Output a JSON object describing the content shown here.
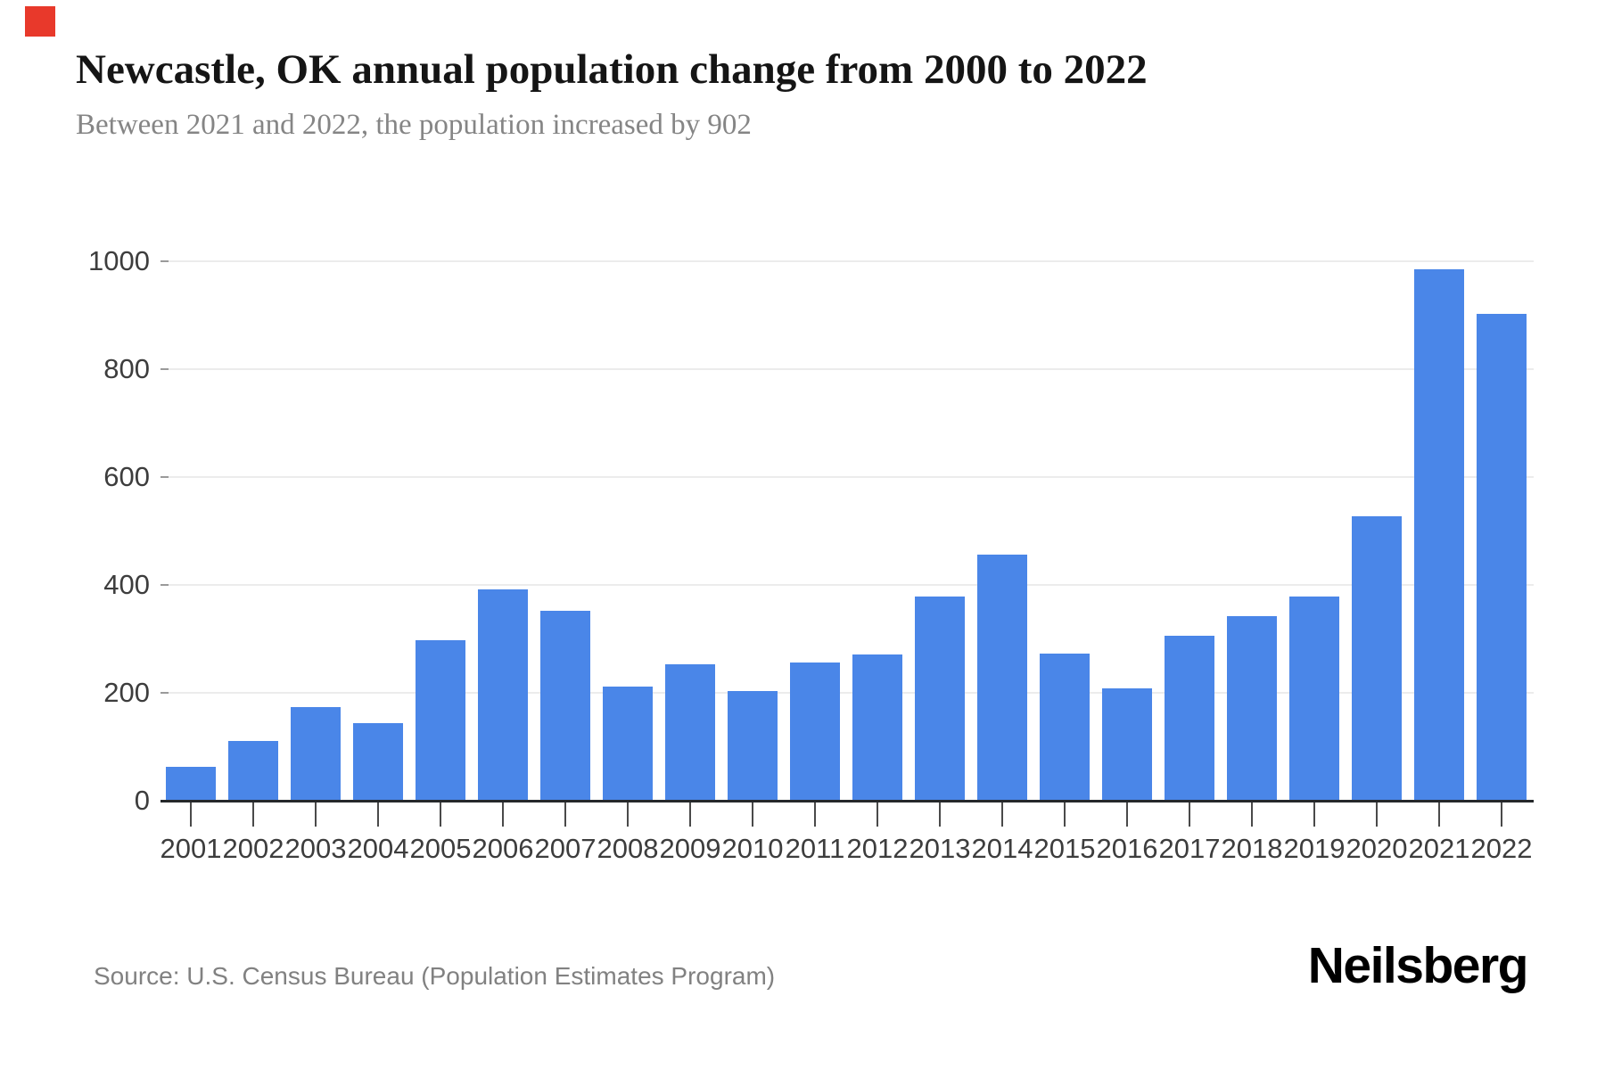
{
  "marker": {
    "color": "#e8392b"
  },
  "header": {
    "title": "Newcastle, OK annual population change from 2000 to 2022",
    "subtitle": "Between 2021 and 2022, the population increased by 902"
  },
  "chart_data": {
    "type": "bar",
    "title": "Newcastle, OK annual population change from 2000 to 2022",
    "subtitle": "Between 2021 and 2022, the population increased by 902",
    "categories": [
      "2001",
      "2002",
      "2003",
      "2004",
      "2005",
      "2006",
      "2007",
      "2008",
      "2009",
      "2010",
      "2011",
      "2012",
      "2013",
      "2014",
      "2015",
      "2016",
      "2017",
      "2018",
      "2019",
      "2020",
      "2021",
      "2022"
    ],
    "values": [
      63,
      110,
      173,
      143,
      298,
      392,
      352,
      211,
      253,
      203,
      257,
      271,
      378,
      457,
      272,
      209,
      306,
      342,
      378,
      527,
      985,
      902
    ],
    "xlabel": "",
    "ylabel": "",
    "ylim": [
      0,
      1000
    ],
    "yticks": [
      0,
      200,
      400,
      600,
      800,
      1000
    ],
    "grid": true,
    "legend": "none",
    "colors": {
      "bar": "#4a86e8",
      "gridline": "#ececec",
      "axis_line": "#25282b",
      "tick": "#4a4a4a",
      "tick_label": "#3d3d3d"
    }
  },
  "footer": {
    "source": "Source: U.S. Census Bureau (Population Estimates Program)",
    "brand": "Neilsberg"
  }
}
